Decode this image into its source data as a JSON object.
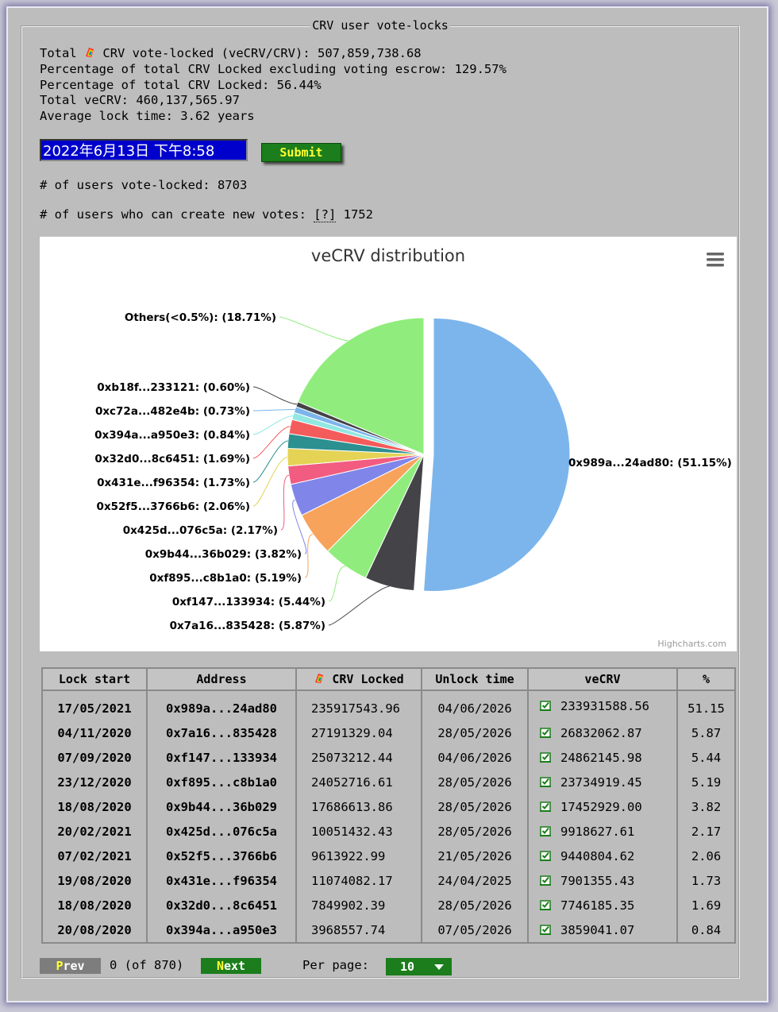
{
  "panel_title": "CRV user vote-locks",
  "stats": {
    "total_prefix": "Total",
    "total_suffix": "CRV vote-locked (veCRV/CRV): 507,859,738.68",
    "pct_excl": "Percentage of total CRV Locked excluding voting escrow: 129.57%",
    "pct_total": "Percentage of total CRV Locked: 56.44%",
    "total_vecrv": "Total veCRV: 460,137,565.97",
    "avg_lock": "Average lock time: 3.62 years"
  },
  "date_input": {
    "value": "2022年6月13日 下午8:58"
  },
  "submit_label": "Submit",
  "users_locked": "# of users vote-locked: 8703",
  "users_new_prefix": "# of users who can create new votes:",
  "users_new_help": "[?]",
  "users_new_value": "1752",
  "chart_credit": "Highcharts.com",
  "chart_menu_icon": "hamburger-menu-icon",
  "crv_icon": "crv-rainbow-icon",
  "chart_data": {
    "type": "pie",
    "title": "veCRV distribution",
    "slices": [
      {
        "name": "0x989a...24ad80",
        "value": 51.15,
        "color": "#7cb5ec"
      },
      {
        "name": "0x7a16...835428",
        "value": 5.87,
        "color": "#434348"
      },
      {
        "name": "0xf147...133934",
        "value": 5.44,
        "color": "#90ed7d"
      },
      {
        "name": "0xf895...c8b1a0",
        "value": 5.19,
        "color": "#f7a35c"
      },
      {
        "name": "0x9b44...36b029",
        "value": 3.82,
        "color": "#8085e9"
      },
      {
        "name": "0x425d...076c5a",
        "value": 2.17,
        "color": "#f15c80"
      },
      {
        "name": "0x52f5...3766b6",
        "value": 2.06,
        "color": "#e4d354"
      },
      {
        "name": "0x431e...f96354",
        "value": 1.73,
        "color": "#2b908f"
      },
      {
        "name": "0x32d0...8c6451",
        "value": 1.69,
        "color": "#f45b5b"
      },
      {
        "name": "0x394a...a950e3",
        "value": 0.84,
        "color": "#91e8e1"
      },
      {
        "name": "0xc72a...482e4b",
        "value": 0.73,
        "color": "#7cb5ec"
      },
      {
        "name": "0xb18f...233121",
        "value": 0.6,
        "color": "#434348"
      },
      {
        "name": "Others(<0.5%)",
        "value": 18.71,
        "color": "#90ed7d"
      }
    ]
  },
  "table": {
    "headers": [
      "Lock start",
      "Address",
      "CRV Locked",
      "Unlock time",
      "veCRV",
      "%"
    ],
    "rows": [
      {
        "start": "17/05/2021",
        "address": "0x989a...24ad80",
        "locked": "235917543.96",
        "unlock": "04/06/2026",
        "vecrv": "233931588.56",
        "pct": "51.15"
      },
      {
        "start": "04/11/2020",
        "address": "0x7a16...835428",
        "locked": "27191329.04",
        "unlock": "28/05/2026",
        "vecrv": "26832062.87",
        "pct": "5.87"
      },
      {
        "start": "07/09/2020",
        "address": "0xf147...133934",
        "locked": "25073212.44",
        "unlock": "04/06/2026",
        "vecrv": "24862145.98",
        "pct": "5.44"
      },
      {
        "start": "23/12/2020",
        "address": "0xf895...c8b1a0",
        "locked": "24052716.61",
        "unlock": "28/05/2026",
        "vecrv": "23734919.45",
        "pct": "5.19"
      },
      {
        "start": "18/08/2020",
        "address": "0x9b44...36b029",
        "locked": "17686613.86",
        "unlock": "28/05/2026",
        "vecrv": "17452929.00",
        "pct": "3.82"
      },
      {
        "start": "20/02/2021",
        "address": "0x425d...076c5a",
        "locked": "10051432.43",
        "unlock": "28/05/2026",
        "vecrv": "9918627.61",
        "pct": "2.17"
      },
      {
        "start": "07/02/2021",
        "address": "0x52f5...3766b6",
        "locked": "9613922.99",
        "unlock": "21/05/2026",
        "vecrv": "9440804.62",
        "pct": "2.06"
      },
      {
        "start": "19/08/2020",
        "address": "0x431e...f96354",
        "locked": "11074082.17",
        "unlock": "24/04/2025",
        "vecrv": "7901355.43",
        "pct": "1.73"
      },
      {
        "start": "18/08/2020",
        "address": "0x32d0...8c6451",
        "locked": "7849902.39",
        "unlock": "28/05/2026",
        "vecrv": "7746185.35",
        "pct": "1.69"
      },
      {
        "start": "20/08/2020",
        "address": "0x394a...a950e3",
        "locked": "3968557.74",
        "unlock": "07/05/2026",
        "vecrv": "3859041.07",
        "pct": "0.84"
      }
    ]
  },
  "pager": {
    "prev_first": "P",
    "prev_rest": "rev",
    "status": "0 (of 870)",
    "next_first": "N",
    "next_rest": "ext",
    "per_page_label": "Per page:",
    "per_page_value": "10"
  }
}
